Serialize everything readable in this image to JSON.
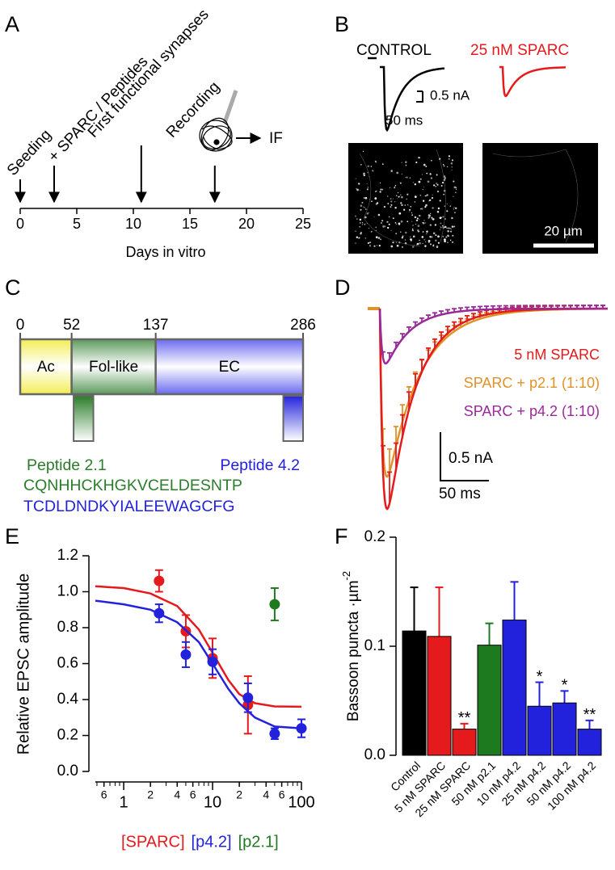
{
  "panel_labels": [
    "A",
    "B",
    "C",
    "D",
    "E",
    "F"
  ],
  "chart_data": [
    {
      "type": "timeline",
      "xlabel": "Days in vitro",
      "xlim": [
        0,
        25
      ],
      "xticks": [
        0,
        5,
        10,
        15,
        20,
        25
      ],
      "events": [
        {
          "x": 0,
          "label": "Seeding"
        },
        {
          "x": 3,
          "label": "+ SPARC / Peptides"
        },
        {
          "x": 10.7,
          "label": "First functional synapses"
        },
        {
          "x": 17.2,
          "label": "Recording"
        }
      ],
      "recording_output": "IF"
    },
    {
      "type": "scatter",
      "ylabel": "Relative EPSC amplitude",
      "xscale": "log",
      "xlim": [
        0.48,
        100
      ],
      "ylim": [
        0,
        1.2
      ],
      "xticks": [
        {
          "value": 0.6,
          "label": "6"
        },
        1,
        2,
        4,
        6,
        10,
        {
          "value": 20,
          "label": "2"
        },
        {
          "value": 40,
          "label": "4"
        },
        {
          "value": 60,
          "label": "6"
        },
        100
      ],
      "xminorticks": [
        0.5,
        0.7,
        0.8,
        0.9,
        3,
        5,
        7,
        8,
        9,
        30,
        50,
        70,
        80,
        90
      ],
      "yticks": [
        {
          "value": 0,
          "label": "0.0"
        },
        0.2,
        0.4,
        0.6,
        0.8,
        {
          "value": 1,
          "label": "1.0"
        },
        1.2
      ],
      "legend": "bottom",
      "series": [
        {
          "name": "[SPARC]",
          "color": "#e41a1c",
          "x": [
            2.5,
            5,
            10,
            25
          ],
          "values": [
            1.06,
            0.78,
            0.63,
            0.37
          ],
          "errors": [
            0.06,
            0.09,
            0.11,
            0.16
          ],
          "curve_x": [
            0.48,
            1,
            2,
            4,
            7,
            10,
            15,
            20,
            30,
            50,
            100
          ],
          "curve_y": [
            1.03,
            1.02,
            0.99,
            0.92,
            0.79,
            0.66,
            0.51,
            0.43,
            0.38,
            0.362,
            0.36
          ]
        },
        {
          "name": "[p4.2]",
          "color": "#2222dd",
          "x": [
            2.5,
            5,
            10,
            25,
            50,
            100
          ],
          "values": [
            0.88,
            0.65,
            0.61,
            0.41,
            0.21,
            0.24
          ],
          "errors": [
            0.05,
            0.07,
            0.07,
            0.08,
            0.03,
            0.05
          ],
          "curve_x": [
            0.48,
            1,
            2,
            4,
            7,
            10,
            15,
            20,
            30,
            50,
            100
          ],
          "curve_y": [
            0.95,
            0.93,
            0.9,
            0.83,
            0.72,
            0.6,
            0.46,
            0.38,
            0.3,
            0.25,
            0.24
          ]
        },
        {
          "name": "[p2.1]",
          "color": "#1e7a1e",
          "x": [
            50
          ],
          "values": [
            0.93
          ],
          "errors": [
            0.09
          ]
        }
      ]
    },
    {
      "type": "bar",
      "ylabel": "Bassoon puncta ·µm",
      "ylabel_superscript": "-2",
      "ylim": [
        0,
        0.2
      ],
      "yticks": [
        {
          "value": 0,
          "label": "0.0"
        },
        0.1,
        0.2
      ],
      "categories": [
        "Control",
        "5 nM SPARC",
        "25 nM SPARC",
        "50 nM p2.1",
        "10 nM p4.2",
        "25 nM p4.2",
        "50 nM p4.2",
        "100 nM p4.2"
      ],
      "values": [
        0.114,
        0.109,
        0.024,
        0.101,
        0.124,
        0.045,
        0.048,
        0.024
      ],
      "errors": [
        0.04,
        0.045,
        0.005,
        0.02,
        0.035,
        0.022,
        0.011,
        0.008
      ],
      "colors": [
        "#000000",
        "#e41a1c",
        "#e41a1c",
        "#1e7a1e",
        "#2222dd",
        "#2222dd",
        "#2222dd",
        "#2222dd"
      ],
      "annotations": [
        null,
        null,
        "**",
        null,
        null,
        "*",
        "*",
        "**"
      ]
    }
  ],
  "panel_b": {
    "traces": [
      {
        "label": "CONTROL",
        "color": "#000000"
      },
      {
        "label": "25 nM SPARC",
        "color": "#e41a1c"
      }
    ],
    "scale_current": "0.5 nA",
    "scale_time": "50 ms",
    "scale_length": "20 µm"
  },
  "panel_c": {
    "positions": [
      0,
      52,
      137,
      286
    ],
    "domains": [
      {
        "label": "Ac",
        "color": "#f2ee55"
      },
      {
        "label": "Fol-like",
        "color": "#5c9a5c"
      },
      {
        "label": "EC",
        "color": "#6a6af0"
      }
    ],
    "peptides": [
      {
        "name": "Peptide 2.1",
        "sequence": "CQNHHCKHGKVCELDESNTP",
        "start": 54,
        "end": 74,
        "color": "#2a7d2a"
      },
      {
        "name": "Peptide 4.2",
        "sequence": "TCDLDNDKYIALEEWAGCFG",
        "start": 266,
        "end": 286,
        "color": "#2222dd"
      }
    ]
  },
  "panel_d": {
    "traces": [
      {
        "label": "5 nM SPARC",
        "color": "#e41a1c"
      },
      {
        "label": "SPARC + p2.1 (1:10)",
        "color": "#e0922a"
      },
      {
        "label": "SPARC + p4.2 (1:10)",
        "color": "#9a2a9a"
      }
    ],
    "scale_current": "0.5 nA",
    "scale_time": "50 ms"
  }
}
